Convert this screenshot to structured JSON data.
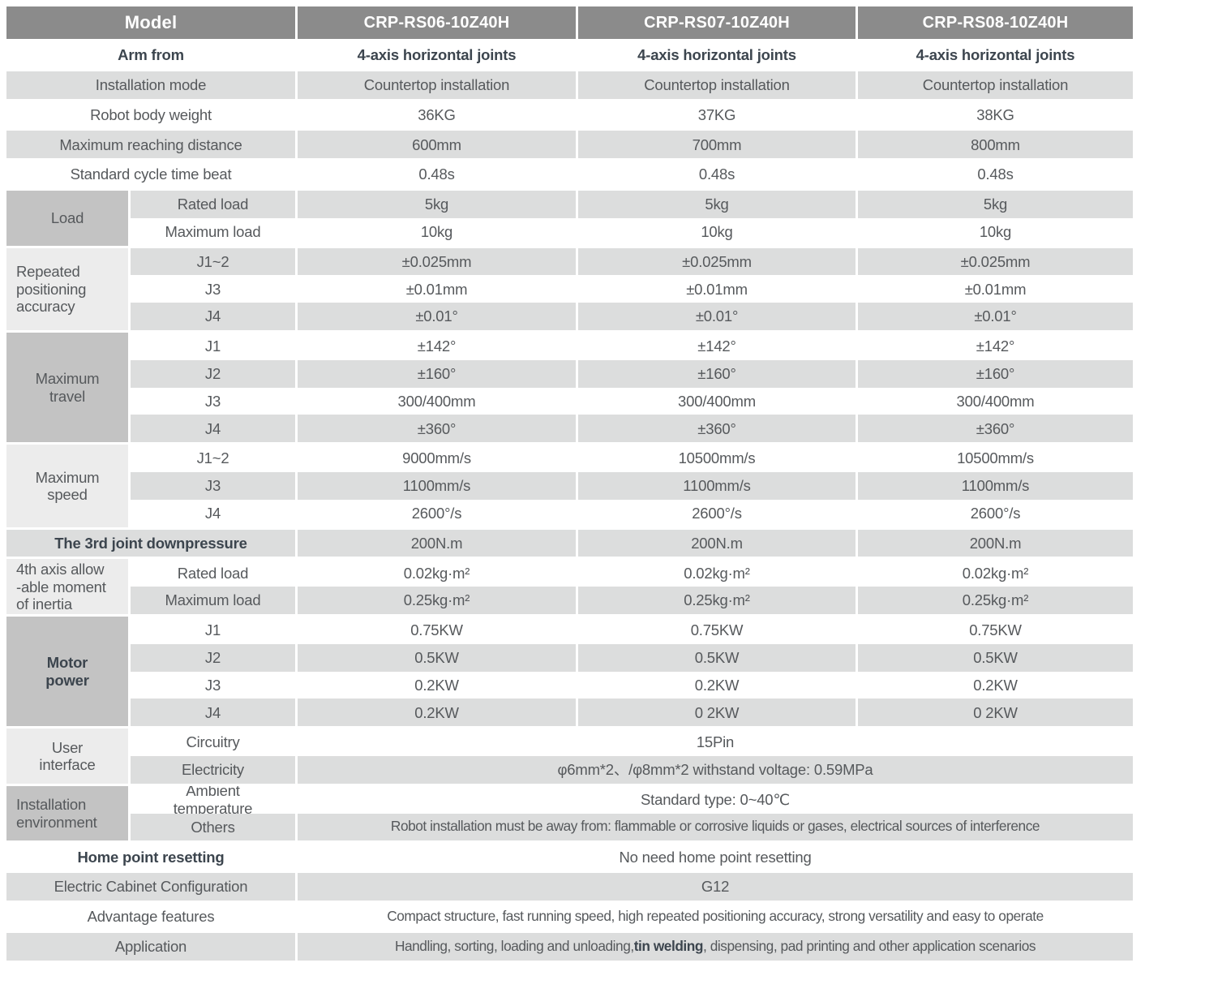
{
  "table": {
    "colors": {
      "header_bg": "#8b8b8b",
      "row_gray": "#dcdddd",
      "group_light": "#ececec",
      "group_dark": "#c3c3c3",
      "text": "#56595c",
      "text_bold": "#3c454e",
      "header_text": "#ffffff"
    },
    "header": {
      "label": "Model",
      "models": [
        "CRP-RS06-10Z40H",
        "CRP-RS07-10Z40H",
        "CRP-RS08-10Z40H"
      ]
    },
    "blocks": [
      {
        "label": "Arm from",
        "bold": true,
        "rows": [
          {
            "values": [
              "4-axis horizontal joints",
              "4-axis horizontal joints",
              "4-axis horizontal joints"
            ],
            "shade": "white",
            "bold": true
          }
        ]
      },
      {
        "label": "Installation mode",
        "rows": [
          {
            "values": [
              "Countertop installation",
              "Countertop installation",
              "Countertop installation"
            ],
            "shade": "gray"
          }
        ]
      },
      {
        "label": "Robot body weight",
        "rows": [
          {
            "values": [
              "36KG",
              "37KG",
              "38KG"
            ],
            "shade": "white"
          }
        ]
      },
      {
        "label": "Maximum reaching distance",
        "rows": [
          {
            "values": [
              "600mm",
              "700mm",
              "800mm"
            ],
            "shade": "gray"
          }
        ]
      },
      {
        "label": "Standard cycle time beat",
        "rows": [
          {
            "values": [
              "0.48s",
              "0.48s",
              "0.48s"
            ],
            "shade": "white"
          }
        ]
      },
      {
        "group": "Load",
        "group_shade": "dark",
        "rows": [
          {
            "sub": "Rated load",
            "values": [
              "5kg",
              "5kg",
              "5kg"
            ],
            "shade": "gray"
          },
          {
            "sub": "Maximum load",
            "values": [
              "10kg",
              "10kg",
              "10kg"
            ],
            "shade": "white"
          }
        ]
      },
      {
        "group": "Repeated\npositioning\naccuracy",
        "group_shade": "light",
        "group_align": "left",
        "rows": [
          {
            "sub": "J1~2",
            "values": [
              "±0.025mm",
              "±0.025mm",
              "±0.025mm"
            ],
            "shade": "gray"
          },
          {
            "sub": "J3",
            "values": [
              "±0.01mm",
              "±0.01mm",
              "±0.01mm"
            ],
            "shade": "white"
          },
          {
            "sub": "J4",
            "values": [
              "±0.01°",
              "±0.01°",
              "±0.01°"
            ],
            "shade": "gray"
          }
        ]
      },
      {
        "group": "Maximum\ntravel",
        "group_shade": "dark",
        "rows": [
          {
            "sub": "J1",
            "values": [
              "±142°",
              "±142°",
              "±142°"
            ],
            "shade": "white"
          },
          {
            "sub": "J2",
            "values": [
              "±160°",
              "±160°",
              "±160°"
            ],
            "shade": "gray"
          },
          {
            "sub": "J3",
            "values": [
              "300/400mm",
              "300/400mm",
              "300/400mm"
            ],
            "shade": "white"
          },
          {
            "sub": "J4",
            "values": [
              "±360°",
              "±360°",
              "±360°"
            ],
            "shade": "gray"
          }
        ]
      },
      {
        "group": "Maximum\nspeed",
        "group_shade": "light",
        "rows": [
          {
            "sub": "J1~2",
            "values": [
              "9000mm/s",
              "10500mm/s",
              "10500mm/s"
            ],
            "shade": "white"
          },
          {
            "sub": "J3",
            "values": [
              "1100mm/s",
              "1100mm/s",
              "1100mm/s"
            ],
            "shade": "gray"
          },
          {
            "sub": "J4",
            "values": [
              "2600°/s",
              "2600°/s",
              "2600°/s"
            ],
            "shade": "white"
          }
        ]
      },
      {
        "label": "The 3rd joint downpressure",
        "bold": true,
        "rows": [
          {
            "values": [
              "200N.m",
              "200N.m",
              "200N.m"
            ],
            "shade": "gray"
          }
        ]
      },
      {
        "group": "4th axis allow\n-able moment\nof inertia",
        "group_shade": "light",
        "group_align": "left",
        "rows": [
          {
            "sub": "Rated load",
            "values": [
              "0.02kg·m²",
              "0.02kg·m²",
              "0.02kg·m²"
            ],
            "shade": "white"
          },
          {
            "sub": "Maximum load",
            "values": [
              "0.25kg·m²",
              "0.25kg·m²",
              "0.25kg·m²"
            ],
            "shade": "gray"
          }
        ]
      },
      {
        "group": "Motor\npower",
        "group_shade": "dark",
        "group_bold": true,
        "rows": [
          {
            "sub": "J1",
            "values": [
              "0.75KW",
              "0.75KW",
              "0.75KW"
            ],
            "shade": "white"
          },
          {
            "sub": "J2",
            "values": [
              "0.5KW",
              "0.5KW",
              "0.5KW"
            ],
            "shade": "gray"
          },
          {
            "sub": "J3",
            "values": [
              "0.2KW",
              "0.2KW",
              "0.2KW"
            ],
            "shade": "white"
          },
          {
            "sub": "J4",
            "values": [
              "0.2KW",
              "0 2KW",
              "0 2KW"
            ],
            "shade": "gray"
          }
        ]
      },
      {
        "group": "User\ninterface",
        "group_shade": "light",
        "rows": [
          {
            "sub": "Circuitry",
            "merged": "15Pin",
            "shade": "white"
          },
          {
            "sub": "Electricity",
            "merged": "φ6mm*2、/φ8mm*2  withstand voltage: 0.59MPa",
            "shade": "gray"
          }
        ]
      },
      {
        "group": "Installation\nenvironment",
        "group_shade": "dark",
        "group_align": "left",
        "rows": [
          {
            "sub": "Ambient\ntemperature",
            "merged": "Standard type:  0~40℃",
            "shade": "white"
          },
          {
            "sub": "Others",
            "merged": "Robot installation must be away from: flammable or corrosive liquids or gases, electrical sources of interference",
            "shade": "gray",
            "small": true
          }
        ]
      },
      {
        "label": "Home point resetting",
        "bold": true,
        "rows": [
          {
            "merged": "No need home point resetting",
            "shade": "white"
          }
        ]
      },
      {
        "label": "Electric Cabinet Configuration",
        "rows": [
          {
            "merged": "G12",
            "shade": "gray"
          }
        ]
      },
      {
        "label": "Advantage features",
        "rows": [
          {
            "merged": "Compact structure, fast running speed, high repeated positioning accuracy, strong versatility and easy to operate",
            "shade": "white",
            "small": true
          }
        ]
      },
      {
        "label": "Application",
        "rows": [
          {
            "merged_parts": [
              {
                "t": "Handling, sorting, loading and unloading, ",
                "b": false
              },
              {
                "t": "tin welding",
                "b": true
              },
              {
                "t": ", dispensing, pad printing and other application scenarios",
                "b": false
              }
            ],
            "shade": "gray",
            "small": true
          }
        ]
      }
    ]
  }
}
